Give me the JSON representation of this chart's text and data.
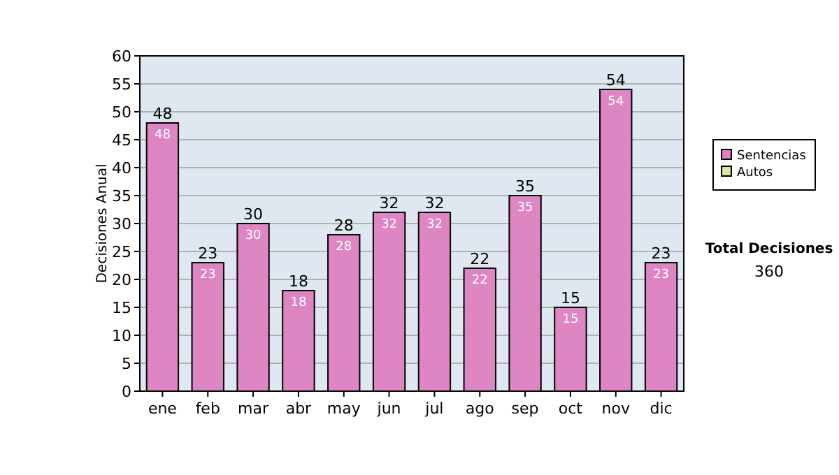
{
  "chart_data": {
    "type": "bar",
    "ylabel": "Decisiones Anual",
    "categories": [
      "ene",
      "feb",
      "mar",
      "abr",
      "may",
      "jun",
      "jul",
      "ago",
      "sep",
      "oct",
      "nov",
      "dic"
    ],
    "series": [
      {
        "name": "Sentencias",
        "color": "#dd80c0",
        "values": [
          48,
          23,
          30,
          18,
          28,
          32,
          32,
          22,
          35,
          15,
          54,
          23
        ],
        "value_labels": [
          "48",
          "23",
          "30",
          "18",
          "28",
          "32",
          "32",
          "22",
          "35",
          "15",
          "54",
          "23"
        ]
      },
      {
        "name": "Autos",
        "color": "#d4e8a0",
        "values": [
          0,
          0,
          0,
          0,
          0,
          0,
          0,
          0,
          0,
          0,
          0,
          0
        ],
        "value_labels": [
          null,
          null,
          null,
          null,
          null,
          null,
          null,
          null,
          null,
          null,
          null,
          null
        ]
      }
    ],
    "stacked": true,
    "totals": [
      "48",
      "23",
      "30",
      "18",
      "28",
      "32",
      "32",
      "22",
      "35",
      "15",
      "54",
      "23"
    ],
    "ylim": [
      0,
      60
    ],
    "yticks": [
      0,
      5,
      10,
      15,
      20,
      25,
      30,
      35,
      40,
      45,
      50,
      55,
      60
    ],
    "grid": "y",
    "legend": "right",
    "annotations": [
      "Total Decisiones",
      "360"
    ]
  }
}
